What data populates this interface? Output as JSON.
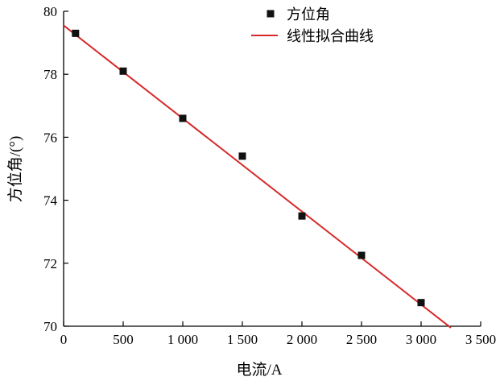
{
  "chart_data": {
    "type": "scatter",
    "title": "",
    "xlabel": "电流/A",
    "ylabel": "方位角/(°)",
    "xlim": [
      0,
      3500
    ],
    "ylim": [
      70,
      80
    ],
    "x_ticks": [
      0,
      500,
      1000,
      1500,
      2000,
      2500,
      3000,
      3500
    ],
    "x_tick_labels": [
      "0",
      "500",
      "1 000",
      "1 500",
      "2 000",
      "2 500",
      "3 000",
      "3 500"
    ],
    "y_ticks": [
      70,
      72,
      74,
      76,
      78,
      80
    ],
    "y_tick_labels": [
      "70",
      "72",
      "74",
      "76",
      "78",
      "80"
    ],
    "grid": false,
    "legend_position": "top",
    "series": [
      {
        "name": "方位角",
        "kind": "scatter",
        "marker": "square",
        "color": "#111111",
        "points": [
          {
            "x": 100,
            "y": 79.3
          },
          {
            "x": 500,
            "y": 78.1
          },
          {
            "x": 1000,
            "y": 76.6
          },
          {
            "x": 1500,
            "y": 75.4
          },
          {
            "x": 2000,
            "y": 73.5
          },
          {
            "x": 2500,
            "y": 72.25
          },
          {
            "x": 3000,
            "y": 70.75
          }
        ]
      },
      {
        "name": "线性拟合曲线",
        "kind": "line",
        "color": "#d62a2a",
        "points": [
          {
            "x": 0,
            "y": 79.55
          },
          {
            "x": 3250,
            "y": 69.95
          }
        ]
      }
    ]
  }
}
